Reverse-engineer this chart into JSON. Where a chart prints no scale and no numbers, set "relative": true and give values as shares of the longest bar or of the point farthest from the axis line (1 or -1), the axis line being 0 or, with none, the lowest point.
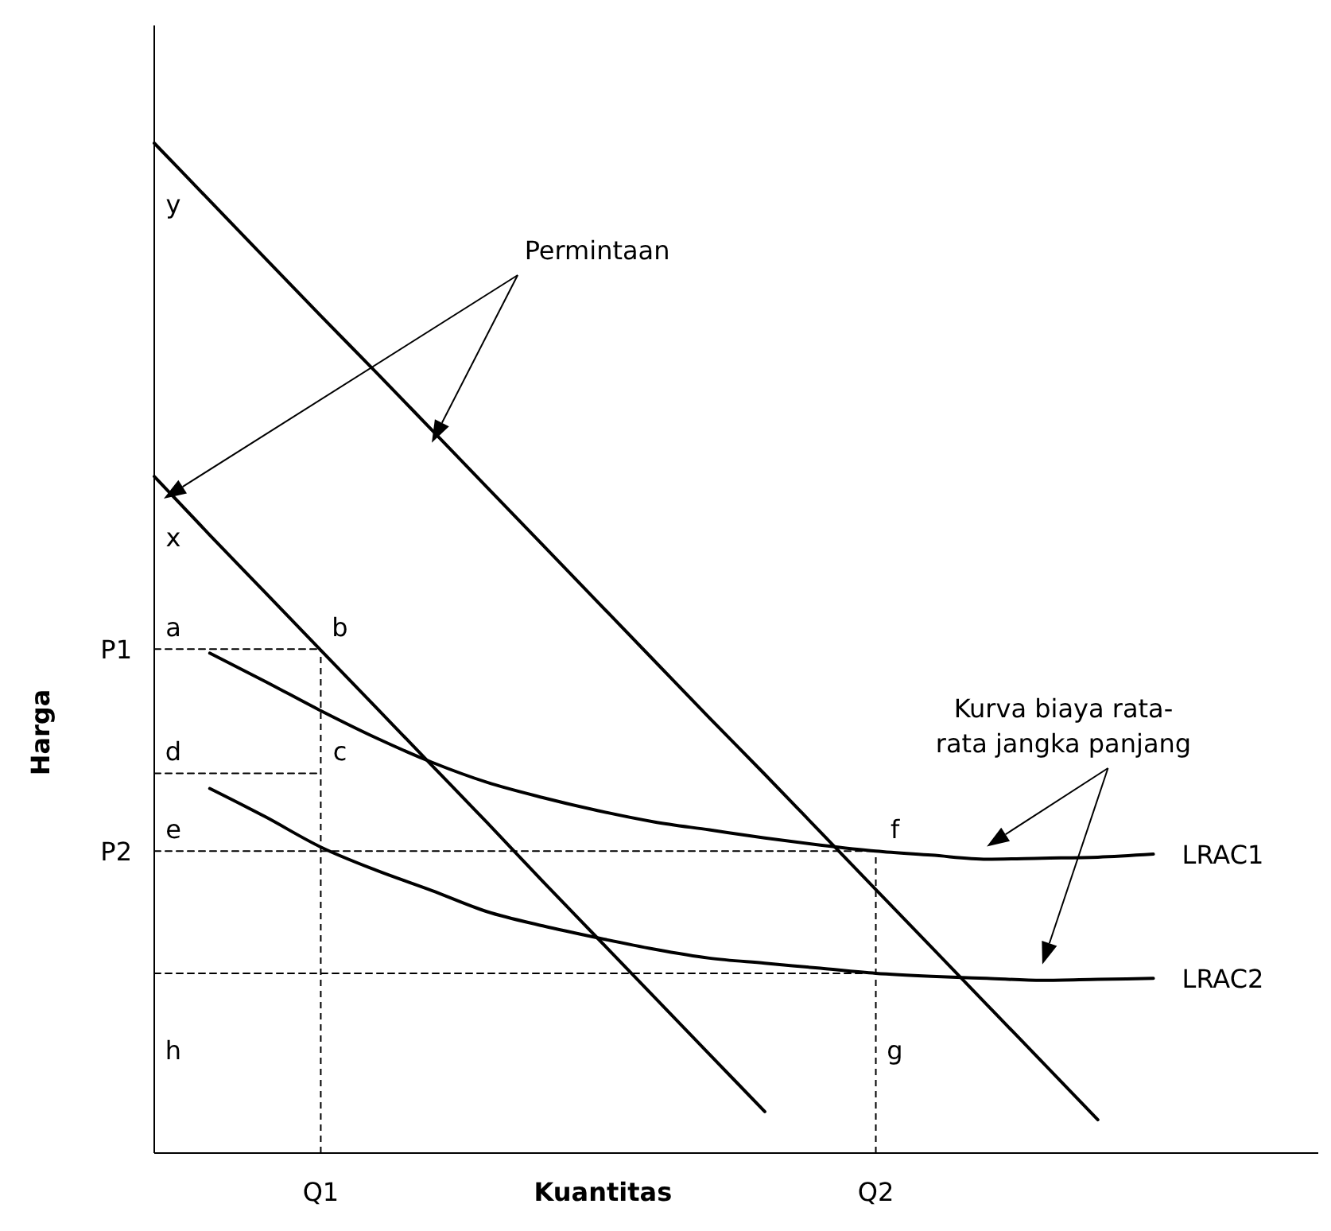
{
  "chart_data": {
    "type": "line",
    "relative": true,
    "xlabel": "Kuantitas",
    "ylabel": "Harga",
    "categories": [
      null,
      null,
      null,
      "Q1",
      null,
      null,
      null,
      null,
      null,
      null,
      null,
      null,
      null,
      "Q2",
      null,
      null,
      null,
      null,
      null,
      null,
      null,
      null
    ],
    "grid": false,
    "marker": "none",
    "series": [
      {
        "color": "#000000",
        "values": [
          1,
          0.943,
          0.886,
          0.829,
          0.773,
          0.716,
          0.659,
          0.602,
          0.545,
          0.488,
          0.431,
          0.375,
          0.318,
          0.261,
          0.204,
          0.147,
          0.09,
          0.033,
          null,
          null,
          null,
          null
        ]
      },
      {
        "color": "#000000",
        "values": [
          0.67,
          0.612,
          0.555,
          0.498,
          0.441,
          0.384,
          0.327,
          0.269,
          0.212,
          0.155,
          0.098,
          0.041,
          null,
          null,
          null,
          null,
          null,
          null,
          null,
          null,
          null,
          null
        ]
      },
      {
        "name": "LRAC1",
        "color": "#000000",
        "values": [
          null,
          0.495,
          0.467,
          0.438,
          0.411,
          0.387,
          0.367,
          0.352,
          0.339,
          0.328,
          0.32,
          0.312,
          0.305,
          0.299,
          0.295,
          0.291,
          0.292,
          0.293,
          0.296,
          null,
          null,
          null
        ]
      },
      {
        "name": "LRAC2",
        "color": "#000000",
        "values": [
          null,
          0.361,
          0.333,
          0.303,
          0.28,
          0.26,
          0.239,
          0.225,
          0.213,
          0.202,
          0.193,
          0.188,
          0.183,
          0.178,
          0.175,
          0.173,
          0.171,
          0.172,
          0.173,
          null,
          null,
          null
        ]
      },
      {
        "color": "#000000",
        "line_style": "dashed",
        "values": [
          0.499,
          0.499,
          0.499,
          0.499,
          null,
          null,
          null,
          null,
          null,
          null,
          null,
          null,
          null,
          null,
          null,
          null,
          null,
          null,
          null,
          null,
          null,
          null
        ]
      },
      {
        "color": "#000000",
        "line_style": "dashed",
        "values": [
          0.376,
          0.376,
          0.376,
          0.376,
          null,
          null,
          null,
          null,
          null,
          null,
          null,
          null,
          null,
          null,
          null,
          null,
          null,
          null,
          null,
          null,
          null,
          null
        ]
      },
      {
        "color": "#000000",
        "line_style": "dashed",
        "values": [
          0.299,
          0.299,
          0.299,
          0.299,
          0.299,
          0.299,
          0.299,
          0.299,
          0.299,
          0.299,
          0.299,
          0.299,
          0.299,
          0.299,
          null,
          null,
          null,
          null,
          null,
          null,
          null,
          null
        ]
      },
      {
        "color": "#000000",
        "line_style": "dashed",
        "values": [
          0.178,
          0.178,
          0.178,
          0.178,
          0.178,
          0.178,
          0.178,
          0.178,
          0.178,
          0.178,
          0.178,
          0.178,
          0.178,
          0.178,
          null,
          null,
          null,
          null,
          null,
          null,
          null,
          null
        ]
      }
    ],
    "ref_lines": [
      {
        "axis": "x",
        "value": "Q1",
        "line_style": "dashed",
        "color": "#000000"
      },
      {
        "axis": "x",
        "value": "Q2",
        "line_style": "dashed",
        "color": "#000000"
      }
    ],
    "annotations": [
      "P1",
      "P2",
      "y",
      "x",
      {
        "text": "a",
        "y": 0.499
      },
      {
        "text": "b",
        "x": "Q1",
        "y": 0.499
      },
      {
        "text": "d",
        "y": 0.376
      },
      {
        "text": "c",
        "x": "Q1",
        "y": 0.376
      },
      {
        "text": "e",
        "y": 0.299
      },
      {
        "text": "f",
        "x": "Q2",
        "y": 0.299
      },
      {
        "text": "h",
        "y": 0.178
      },
      {
        "text": "g",
        "x": "Q2",
        "y": 0.178
      },
      "Permintaan",
      "Kurva biaya rata-rata jangka panjang"
    ]
  }
}
